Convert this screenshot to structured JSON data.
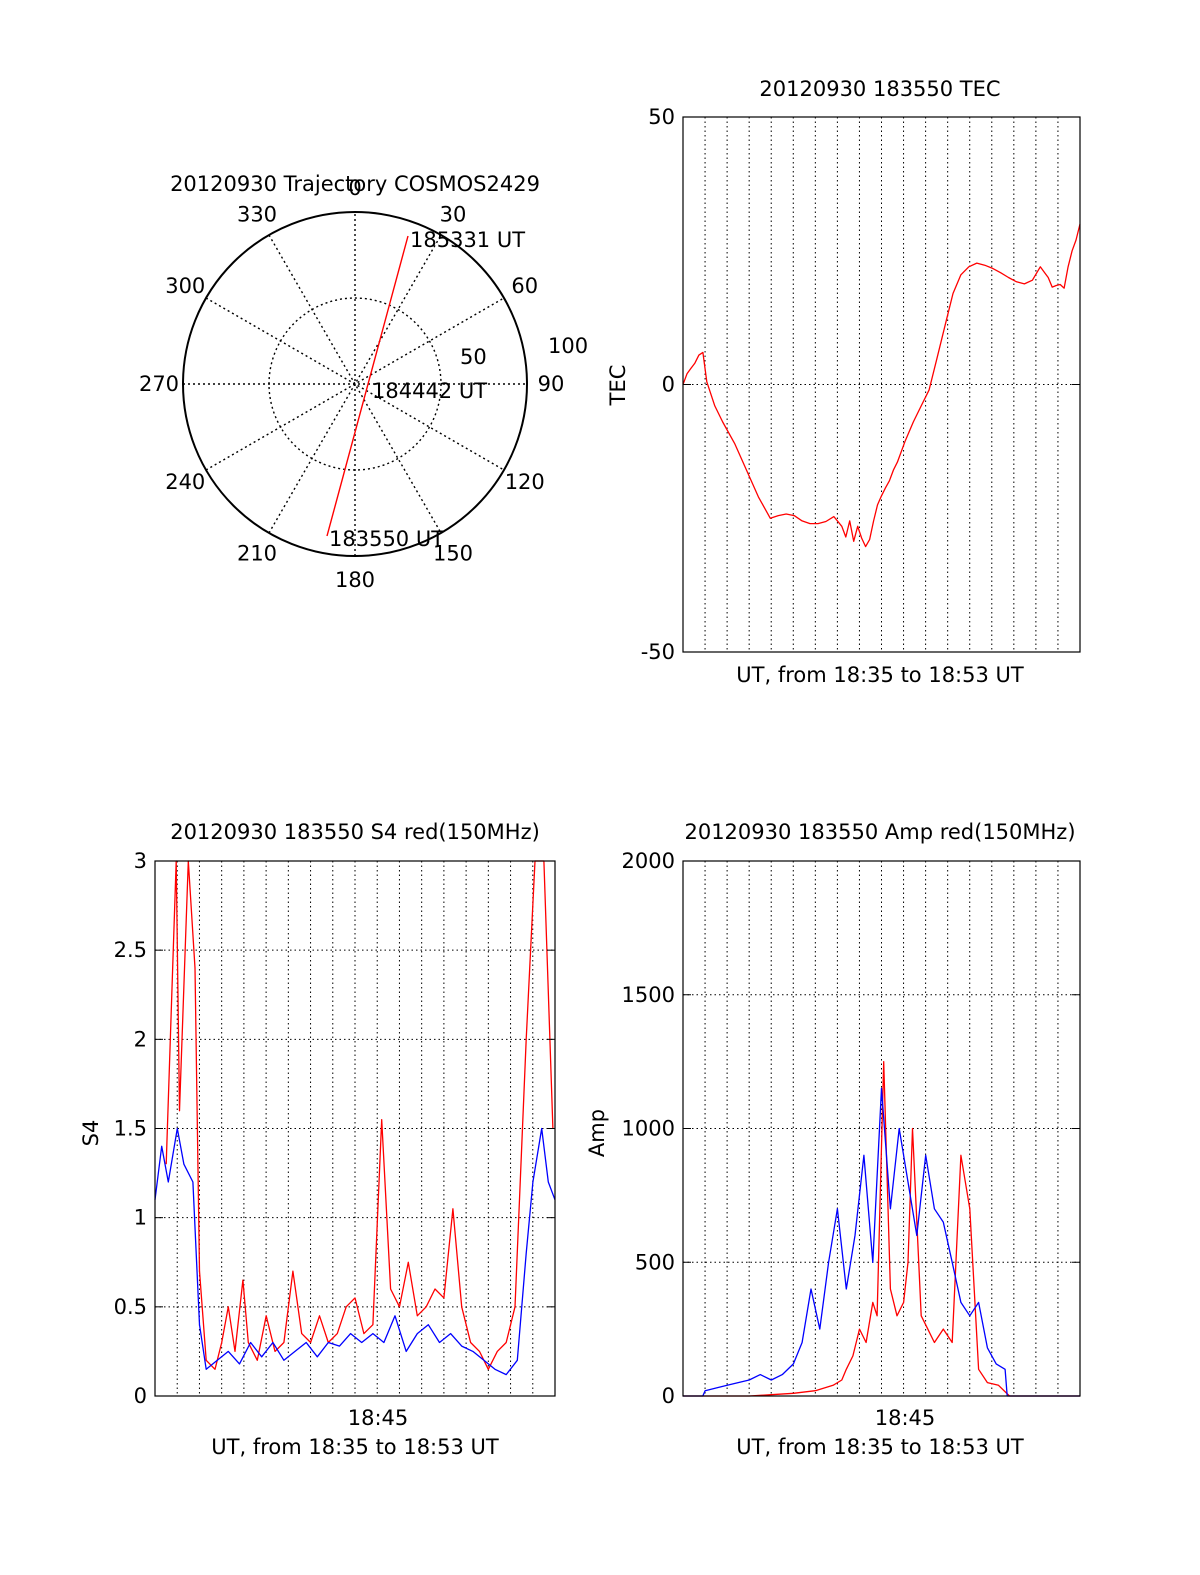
{
  "colors": {
    "red": "#ff0000",
    "blue": "#0000ff",
    "axis": "#000000"
  },
  "polar": {
    "title": "20120930 Trajectory COSMOS2429",
    "azimuth_labels": [
      "0",
      "30",
      "60",
      "90",
      "120",
      "150",
      "180",
      "210",
      "240",
      "270",
      "300",
      "330"
    ],
    "ring_labels": [
      "50",
      "100"
    ],
    "annotations": {
      "end": "185331 UT",
      "mid": "184442 UT",
      "start": "183550 UT"
    }
  },
  "chart_data": [
    {
      "type": "line",
      "title": "20120930 183550 TEC",
      "xlabel": "UT, from 18:35 to 18:53 UT",
      "ylabel": "TEC",
      "xlim": [
        0,
        100
      ],
      "ylim": [
        -50,
        50
      ],
      "yticks": [
        "-50",
        "0",
        "50"
      ],
      "grid": true,
      "series": [
        {
          "color": "red",
          "x": [
            0,
            1,
            2,
            3,
            4,
            5,
            6,
            8,
            10,
            13,
            16,
            19,
            22,
            24,
            26,
            28,
            30,
            32,
            34,
            36,
            38,
            40,
            41,
            42,
            43,
            44,
            45,
            46,
            47,
            48,
            49,
            50,
            51,
            52,
            53,
            54,
            56,
            58,
            60,
            62,
            64,
            66,
            68,
            70,
            72,
            74,
            76,
            78,
            80,
            82,
            84,
            86,
            88,
            90,
            91,
            92,
            93,
            94,
            95,
            96,
            97,
            98,
            99,
            100
          ],
          "y": [
            0,
            2,
            3,
            4,
            5.5,
            6,
            0.5,
            -4,
            -7,
            -11,
            -16,
            -21,
            -25,
            -24.5,
            -24.2,
            -24.5,
            -25.5,
            -26,
            -26,
            -25.6,
            -24.7,
            -26.5,
            -28.5,
            -25.5,
            -29.3,
            -26.5,
            -28.7,
            -30.3,
            -29,
            -25.5,
            -22.5,
            -20.8,
            -19.3,
            -18,
            -16,
            -14.5,
            -10.5,
            -7,
            -4,
            -1,
            5,
            11,
            17,
            20.5,
            22,
            22.7,
            22.3,
            21.7,
            20.9,
            20,
            19.2,
            18.8,
            19.5,
            22,
            21,
            20,
            18.2,
            18.5,
            18.7,
            18,
            22,
            25,
            27,
            30
          ]
        }
      ]
    },
    {
      "type": "line",
      "title": "20120930 183550 S4 red(150MHz)",
      "xlabel": "UT, from 18:35 to 18:53 UT",
      "ylabel": "S4",
      "xlim": [
        18.5833,
        18.8833
      ],
      "ylim": [
        0,
        3
      ],
      "xticks": [
        "18:45"
      ],
      "yticks": [
        "0",
        "0.5",
        "1",
        "1.5",
        "2",
        "2.5",
        "3"
      ],
      "grid": true,
      "series": [
        {
          "color": "red",
          "x": [
            18.5917,
            18.5992,
            18.6017,
            18.6083,
            18.6133,
            18.6167,
            18.6217,
            18.6283,
            18.6333,
            18.6383,
            18.6433,
            18.6492,
            18.6533,
            18.66,
            18.6667,
            18.6733,
            18.68,
            18.6867,
            18.6933,
            18.7,
            18.7067,
            18.7133,
            18.72,
            18.7267,
            18.7333,
            18.74,
            18.7467,
            18.7533,
            18.76,
            18.7667,
            18.7733,
            18.78,
            18.7867,
            18.7933,
            18.8,
            18.8067,
            18.8133,
            18.82,
            18.8267,
            18.8333,
            18.84,
            18.8467,
            18.8533,
            18.8617,
            18.8683,
            18.875,
            18.8817
          ],
          "y": [
            1.3,
            3.0,
            1.6,
            3.0,
            2.4,
            0.7,
            0.2,
            0.15,
            0.3,
            0.5,
            0.25,
            0.65,
            0.3,
            0.2,
            0.45,
            0.25,
            0.3,
            0.7,
            0.35,
            0.3,
            0.45,
            0.3,
            0.35,
            0.5,
            0.55,
            0.35,
            0.4,
            1.55,
            0.6,
            0.5,
            0.75,
            0.45,
            0.5,
            0.6,
            0.55,
            1.05,
            0.5,
            0.3,
            0.25,
            0.15,
            0.25,
            0.3,
            0.5,
            2.0,
            3.0,
            3.0,
            1.5
          ]
        },
        {
          "color": "blue",
          "x": [
            18.5833,
            18.5883,
            18.5933,
            18.6,
            18.605,
            18.6117,
            18.6167,
            18.6217,
            18.63,
            18.6383,
            18.6467,
            18.655,
            18.6633,
            18.6717,
            18.68,
            18.6883,
            18.6967,
            18.705,
            18.7133,
            18.7217,
            18.73,
            18.7383,
            18.7467,
            18.755,
            18.7633,
            18.7717,
            18.78,
            18.7883,
            18.7967,
            18.805,
            18.8133,
            18.8217,
            18.83,
            18.8383,
            18.8467,
            18.855,
            18.8617,
            18.8667,
            18.8733,
            18.8783,
            18.8833
          ],
          "y": [
            1.1,
            1.4,
            1.2,
            1.5,
            1.3,
            1.2,
            0.4,
            0.15,
            0.2,
            0.25,
            0.18,
            0.3,
            0.22,
            0.3,
            0.2,
            0.25,
            0.3,
            0.22,
            0.3,
            0.28,
            0.35,
            0.3,
            0.35,
            0.3,
            0.45,
            0.25,
            0.35,
            0.4,
            0.3,
            0.35,
            0.28,
            0.25,
            0.2,
            0.15,
            0.12,
            0.2,
            0.8,
            1.2,
            1.5,
            1.2,
            1.1
          ]
        }
      ]
    },
    {
      "type": "line",
      "title": "20120930 183550 Amp red(150MHz)",
      "xlabel": "UT, from 18:35 to 18:53 UT",
      "ylabel": "Amp",
      "xlim": [
        18.5833,
        18.8833
      ],
      "ylim": [
        0,
        2000
      ],
      "xticks": [
        "18:45"
      ],
      "yticks": [
        "0",
        "500",
        "1000",
        "1500",
        "2000"
      ],
      "grid": true,
      "series": [
        {
          "color": "red",
          "x": [
            18.5833,
            18.6167,
            18.6333,
            18.65,
            18.6667,
            18.6833,
            18.69,
            18.6967,
            18.7033,
            18.7067,
            18.7117,
            18.7167,
            18.7217,
            18.7267,
            18.73,
            18.735,
            18.74,
            18.745,
            18.75,
            18.7533,
            18.7567,
            18.7633,
            18.7683,
            18.7733,
            18.78,
            18.7867,
            18.7933,
            18.8,
            18.8067,
            18.8133,
            18.8217,
            18.83,
            18.8833
          ],
          "y": [
            0,
            0,
            0,
            5,
            10,
            20,
            30,
            40,
            60,
            100,
            150,
            250,
            200,
            350,
            300,
            1250,
            400,
            300,
            350,
            500,
            1000,
            300,
            250,
            200,
            250,
            200,
            900,
            700,
            100,
            50,
            40,
            0,
            0
          ]
        },
        {
          "color": "blue",
          "x": [
            18.5833,
            18.5983,
            18.6,
            18.6083,
            18.6167,
            18.625,
            18.6333,
            18.6417,
            18.65,
            18.6583,
            18.6667,
            18.6733,
            18.68,
            18.6867,
            18.6933,
            18.7,
            18.7067,
            18.7133,
            18.72,
            18.7267,
            18.7333,
            18.74,
            18.7467,
            18.7533,
            18.76,
            18.7667,
            18.7733,
            18.78,
            18.7867,
            18.7933,
            18.8,
            18.8067,
            18.8133,
            18.82,
            18.8267,
            18.8283,
            18.8833
          ],
          "y": [
            0,
            0,
            20,
            30,
            40,
            50,
            60,
            80,
            60,
            80,
            120,
            200,
            400,
            250,
            500,
            700,
            400,
            600,
            900,
            500,
            1150,
            700,
            1000,
            800,
            600,
            900,
            700,
            650,
            500,
            350,
            300,
            350,
            180,
            120,
            100,
            0,
            0
          ]
        }
      ]
    }
  ]
}
